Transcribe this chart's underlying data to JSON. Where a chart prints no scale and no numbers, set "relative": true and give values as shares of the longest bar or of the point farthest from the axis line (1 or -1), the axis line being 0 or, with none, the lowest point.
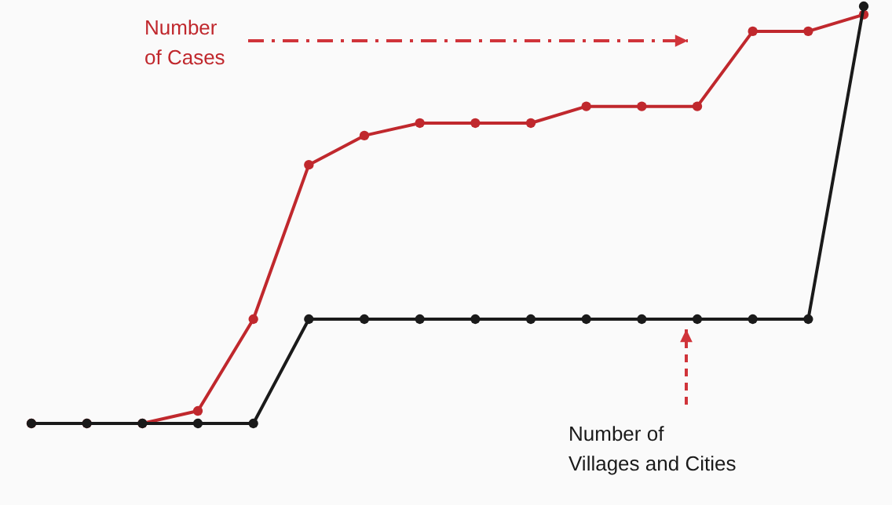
{
  "chart_data": {
    "type": "line",
    "relative": true,
    "categories": [
      null,
      null,
      null,
      null,
      null,
      null,
      null,
      null,
      null,
      null,
      null,
      null,
      null,
      null,
      null,
      null
    ],
    "marker": "circle",
    "line_style": "solid",
    "legend": false,
    "series": [
      {
        "name": "Number of Cases",
        "color": "#c0282d",
        "values": [
          0,
          0,
          0,
          0.03,
          0.25,
          0.62,
          0.69,
          0.72,
          0.72,
          0.72,
          0.76,
          0.76,
          0.76,
          0.94,
          0.94,
          0.98
        ]
      },
      {
        "name": "Number of Villages and Cities",
        "color": "#1a1a1a",
        "values": [
          0,
          0,
          0,
          0,
          0,
          0.25,
          0.25,
          0.25,
          0.25,
          0.25,
          0.25,
          0.25,
          0.25,
          0.25,
          0.25,
          1
        ]
      }
    ]
  }
}
